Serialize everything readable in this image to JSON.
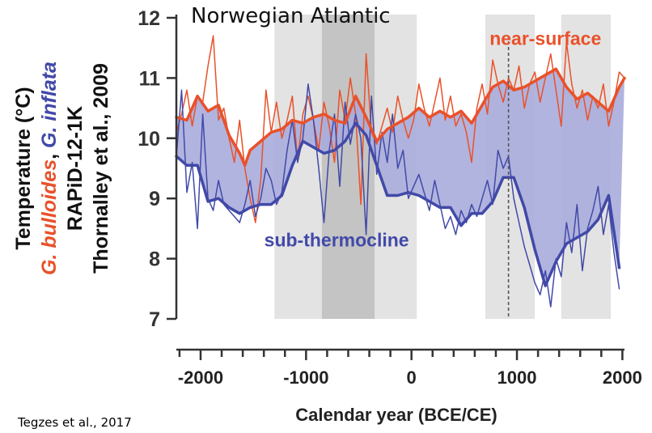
{
  "chart_data": {
    "type": "line",
    "title": "Norwegian Atlantic",
    "xlabel": "Calendar year (BCE/CE)",
    "ylabel_lines": [
      {
        "parts": [
          {
            "text": "Temperature (°C)",
            "color": "#111111",
            "italic": false
          }
        ]
      },
      {
        "parts": [
          {
            "text": "G. bulloides",
            "color": "#e9512a",
            "italic": true
          },
          {
            "text": ", ",
            "color": "#111111",
            "italic": false
          },
          {
            "text": "G. inflata",
            "color": "#4149a8",
            "italic": true
          }
        ]
      },
      {
        "parts": [
          {
            "text": "RAPiD-12-1K",
            "color": "#111111",
            "italic": false
          }
        ]
      },
      {
        "parts": [
          {
            "text": "Thornalley et al., 2009",
            "color": "#111111",
            "italic": false
          }
        ]
      }
    ],
    "xlim": [
      -2230,
      2020
    ],
    "ylim": [
      7,
      12
    ],
    "x_ticks": [
      -2000,
      -1000,
      0,
      1000,
      2000
    ],
    "x_tick_labels": [
      "-2000",
      "-1000",
      "0",
      "1000",
      "2000"
    ],
    "y_ticks": [
      7,
      8,
      9,
      10,
      11,
      12
    ],
    "y_tick_labels": [
      "7",
      "8",
      "9",
      "10",
      "11",
      "12"
    ],
    "grid": false,
    "shaded_periods": [
      {
        "start": -1300,
        "end": 50,
        "shade": "light"
      },
      {
        "start": -850,
        "end": -350,
        "shade": "dark"
      },
      {
        "start": 700,
        "end": 1170,
        "shade": "light"
      },
      {
        "start": 1420,
        "end": 1890,
        "shade": "light"
      }
    ],
    "reference_line": {
      "x": 920,
      "style": "dashed"
    },
    "band_fill_color": "#a9acdc",
    "series": [
      {
        "name": "near-surface",
        "color": "#e9512a",
        "kind": "raw",
        "x": [
          -2230,
          -2180,
          -2130,
          -2080,
          -2030,
          -1980,
          -1930,
          -1880,
          -1830,
          -1780,
          -1730,
          -1680,
          -1630,
          -1580,
          -1530,
          -1480,
          -1430,
          -1380,
          -1330,
          -1280,
          -1230,
          -1180,
          -1130,
          -1080,
          -1030,
          -980,
          -930,
          -880,
          -830,
          -780,
          -730,
          -680,
          -630,
          -580,
          -530,
          -480,
          -430,
          -380,
          -330,
          -280,
          -230,
          -180,
          -130,
          -80,
          -30,
          20,
          70,
          120,
          170,
          220,
          270,
          320,
          370,
          420,
          470,
          520,
          570,
          620,
          670,
          720,
          770,
          820,
          870,
          920,
          970,
          1020,
          1070,
          1120,
          1170,
          1220,
          1270,
          1320,
          1370,
          1420,
          1470,
          1520,
          1570,
          1620,
          1670,
          1720,
          1770,
          1820,
          1870,
          1920,
          1970,
          2020
        ],
        "y": [
          10.1,
          10.4,
          10.8,
          10.2,
          10.7,
          10.6,
          11.2,
          11.7,
          10.3,
          10.5,
          10.0,
          9.6,
          10.3,
          9.5,
          9.0,
          8.6,
          9.3,
          10.8,
          10.1,
          10.6,
          10.0,
          10.3,
          10.7,
          9.6,
          10.4,
          10.7,
          10.3,
          9.8,
          10.6,
          10.2,
          9.6,
          10.8,
          10.3,
          11.0,
          10.4,
          8.9,
          11.4,
          10.1,
          9.9,
          10.2,
          10.5,
          10.1,
          10.7,
          10.3,
          10.0,
          10.3,
          10.9,
          10.5,
          10.2,
          10.6,
          11.0,
          10.3,
          10.7,
          10.2,
          10.4,
          10.1,
          9.6,
          10.5,
          10.9,
          10.4,
          11.3,
          10.9,
          10.6,
          11.0,
          10.8,
          11.2,
          10.5,
          10.9,
          11.1,
          10.6,
          11.0,
          11.4,
          10.8,
          10.2,
          11.6,
          10.9,
          10.5,
          10.8,
          10.3,
          10.7,
          10.5,
          10.9,
          10.2,
          10.6,
          11.1,
          11.0
        ],
        "line_width": 1.5
      },
      {
        "name": "",
        "color": "#e9512a",
        "kind": "smoothed",
        "x": [
          -2230,
          -2130,
          -2030,
          -1930,
          -1830,
          -1730,
          -1630,
          -1580,
          -1530,
          -1430,
          -1330,
          -1230,
          -1130,
          -1030,
          -930,
          -830,
          -730,
          -630,
          -530,
          -430,
          -330,
          -230,
          -130,
          -30,
          70,
          170,
          270,
          370,
          470,
          570,
          670,
          770,
          870,
          970,
          1070,
          1170,
          1270,
          1370,
          1470,
          1570,
          1670,
          1770,
          1870,
          1970,
          2020
        ],
        "y": [
          10.35,
          10.3,
          10.7,
          10.45,
          10.55,
          10.05,
          9.75,
          9.55,
          9.8,
          9.95,
          10.1,
          10.15,
          10.3,
          10.25,
          10.35,
          10.4,
          10.3,
          10.25,
          10.7,
          10.35,
          9.95,
          10.15,
          10.25,
          10.35,
          10.5,
          10.35,
          10.45,
          10.35,
          10.45,
          10.25,
          10.55,
          10.85,
          10.95,
          10.8,
          10.85,
          10.95,
          11.05,
          11.15,
          10.85,
          10.65,
          10.75,
          10.6,
          10.45,
          10.85,
          11.0
        ],
        "line_width": 3.5
      },
      {
        "name": "sub-thermocline",
        "color": "#4149a8",
        "kind": "raw",
        "x": [
          -2230,
          -2180,
          -2130,
          -2080,
          -2030,
          -1980,
          -1930,
          -1880,
          -1830,
          -1780,
          -1730,
          -1680,
          -1630,
          -1580,
          -1530,
          -1480,
          -1430,
          -1380,
          -1330,
          -1280,
          -1230,
          -1180,
          -1130,
          -1080,
          -1030,
          -980,
          -930,
          -880,
          -830,
          -780,
          -730,
          -680,
          -630,
          -580,
          -530,
          -480,
          -430,
          -380,
          -330,
          -280,
          -230,
          -180,
          -130,
          -80,
          -30,
          20,
          70,
          120,
          170,
          220,
          270,
          320,
          370,
          420,
          470,
          520,
          570,
          620,
          670,
          720,
          770,
          820,
          870,
          920,
          970,
          1020,
          1070,
          1120,
          1170,
          1220,
          1270,
          1320,
          1370,
          1420,
          1470,
          1520,
          1570,
          1620,
          1670,
          1720,
          1770,
          1820,
          1870,
          1920,
          1970
        ],
        "y": [
          9.7,
          10.8,
          9.1,
          9.6,
          8.5,
          10.4,
          9.0,
          8.8,
          9.3,
          8.9,
          8.8,
          8.7,
          8.6,
          8.9,
          9.3,
          8.7,
          9.0,
          9.5,
          9.3,
          8.9,
          9.1,
          9.8,
          10.3,
          9.6,
          10.0,
          10.9,
          10.3,
          9.5,
          8.6,
          9.8,
          10.4,
          9.2,
          10.6,
          9.9,
          10.4,
          10.0,
          8.4,
          10.7,
          9.4,
          10.1,
          9.6,
          10.4,
          9.5,
          9.8,
          9.0,
          9.2,
          9.4,
          9.1,
          8.8,
          9.3,
          8.9,
          8.5,
          8.7,
          8.4,
          8.8,
          8.6,
          8.9,
          8.7,
          9.0,
          9.3,
          8.9,
          9.8,
          9.5,
          9.7,
          9.0,
          8.6,
          8.2,
          7.9,
          7.6,
          7.4,
          7.8,
          7.2,
          8.0,
          7.7,
          8.6,
          8.1,
          8.9,
          7.8,
          8.5,
          8.8,
          9.2,
          8.4,
          8.9,
          8.1,
          7.5
        ],
        "line_width": 1.5
      },
      {
        "name": "",
        "color": "#4149a8",
        "kind": "smoothed",
        "x": [
          -2230,
          -2130,
          -2030,
          -1930,
          -1830,
          -1730,
          -1630,
          -1530,
          -1430,
          -1330,
          -1230,
          -1130,
          -1030,
          -930,
          -830,
          -730,
          -630,
          -530,
          -430,
          -330,
          -230,
          -130,
          -30,
          70,
          170,
          270,
          370,
          470,
          570,
          670,
          770,
          870,
          970,
          1070,
          1170,
          1270,
          1370,
          1470,
          1570,
          1670,
          1770,
          1870,
          1970
        ],
        "y": [
          9.7,
          9.55,
          9.55,
          8.95,
          9.0,
          8.85,
          8.75,
          8.85,
          8.9,
          8.9,
          9.05,
          9.55,
          9.95,
          9.85,
          9.75,
          9.8,
          9.95,
          10.25,
          10.05,
          9.55,
          9.05,
          9.05,
          9.1,
          9.05,
          8.95,
          8.85,
          8.85,
          8.55,
          8.75,
          8.75,
          8.95,
          9.35,
          9.35,
          8.85,
          8.15,
          7.55,
          7.95,
          8.25,
          8.35,
          8.45,
          8.65,
          9.05,
          7.85
        ],
        "line_width": 3.5
      }
    ],
    "annotations": [
      {
        "text": "near-surface",
        "color": "#e9512a",
        "x": 1270,
        "y": 11.55
      },
      {
        "text": "sub-thermocline",
        "color": "#4149a8",
        "x": -710,
        "y": 8.2
      }
    ]
  },
  "footer": {
    "credit": "Tegzes et al., 2017"
  }
}
